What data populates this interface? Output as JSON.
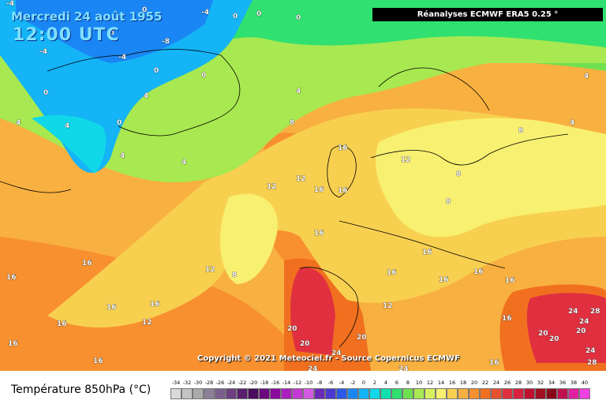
{
  "map": {
    "date": "Mercredi 24 août 1955",
    "time": "12:00 UTC",
    "source": "Réanalyses ECMWF ERA5 0.25 °",
    "copyright": "Copyright © 2021 Meteociel.fr - Source Copernicus ECMWF",
    "contour_labels": [
      "-4",
      "-8",
      "0",
      "4",
      "8",
      "12",
      "16",
      "20",
      "24",
      "28"
    ]
  },
  "legend": {
    "title": "Température 850hPa (°C)",
    "ticks": [
      "-34",
      "-32",
      "-30",
      "-28",
      "-26",
      "-24",
      "-22",
      "-20",
      "-18",
      "-16",
      "-14",
      "-12",
      "-10",
      "-8",
      "-6",
      "-4",
      "-2",
      "0",
      "2",
      "4",
      "6",
      "8",
      "10",
      "12",
      "14",
      "16",
      "18",
      "20",
      "22",
      "24",
      "26",
      "28",
      "30",
      "32",
      "34",
      "36",
      "38",
      "40"
    ],
    "colors": [
      "#d9d9d9",
      "#c4c4c4",
      "#aaaaaa",
      "#8c7f96",
      "#7a5f8c",
      "#6e3f7e",
      "#5a1e6e",
      "#4a0a5e",
      "#6a0a7e",
      "#8a0a9e",
      "#aa20be",
      "#c23ad2",
      "#d45ae4",
      "#6a2ab8",
      "#4a3ad0",
      "#2a5ae6",
      "#1a86f4",
      "#14b4f6",
      "#10d8e8",
      "#10e0b0",
      "#30e070",
      "#70e050",
      "#a8e850",
      "#d8f060",
      "#f8f070",
      "#f8d050",
      "#f8b040",
      "#f89030",
      "#f07020",
      "#e85030",
      "#e03040",
      "#d82040",
      "#c01030",
      "#a01020",
      "#880818",
      "#c01050",
      "#e020a0",
      "#f040e0"
    ]
  }
}
